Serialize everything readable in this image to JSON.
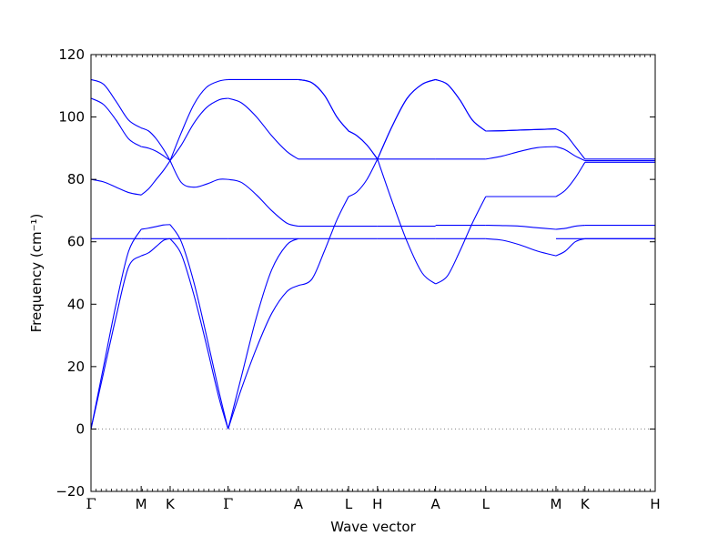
{
  "chart_data": {
    "type": "line",
    "title": "",
    "xlabel": "Wave vector",
    "ylabel": "Frequency (cm⁻¹)",
    "ylim": [
      -20,
      120
    ],
    "y_ticks": [
      -20,
      0,
      20,
      40,
      60,
      80,
      100,
      120
    ],
    "x_ticks": [
      {
        "label": "Γ",
        "x": 0.0
      },
      {
        "label": "M",
        "x": 1.0
      },
      {
        "label": "K",
        "x": 1.577
      },
      {
        "label": "Γ",
        "x": 2.732
      },
      {
        "label": "A",
        "x": 4.132
      },
      {
        "label": "L",
        "x": 5.132
      },
      {
        "label": "H",
        "x": 5.709
      },
      {
        "label": "A",
        "x": 6.866
      },
      {
        "label": "L",
        "x": 7.866
      },
      {
        "label": "M",
        "x": 9.266
      },
      {
        "label": "K",
        "x": 9.843
      },
      {
        "label": "H",
        "x": 11.243
      }
    ],
    "xlim": [
      0,
      11.243
    ],
    "zero_line": {
      "y": 0,
      "style": "dotted",
      "color": "#808080"
    },
    "line_color": "#0000ff",
    "grid": false,
    "legend": "none",
    "segments": [
      {
        "x": [
          0,
          0.25,
          0.5,
          0.75,
          1.0
        ],
        "series": [
          [
            0,
            18,
            36,
            52,
            55.5
          ],
          [
            0,
            20,
            40,
            57,
            64
          ],
          [
            61,
            61,
            61,
            61,
            61
          ],
          [
            80,
            79.2,
            77.5,
            75.8,
            75
          ],
          [
            106,
            104,
            99,
            93,
            90.5
          ],
          [
            112,
            110.5,
            105,
            99,
            96.5
          ]
        ]
      },
      {
        "x": [
          1.0,
          1.15,
          1.3,
          1.45,
          1.577
        ],
        "series": [
          [
            55.5,
            56.5,
            58.5,
            60.5,
            61
          ],
          [
            64,
            64.4,
            64.9,
            65.4,
            65.5
          ],
          [
            61,
            61,
            61,
            61,
            61
          ],
          [
            75,
            77,
            80,
            83,
            86
          ],
          [
            90.5,
            90,
            89,
            87.5,
            86
          ],
          [
            96.5,
            95.5,
            93,
            89.5,
            86
          ]
        ]
      },
      {
        "x": [
          1.577,
          1.8,
          2.05,
          2.3,
          2.55,
          2.732
        ],
        "series": [
          [
            61,
            56,
            43,
            27,
            10,
            0
          ],
          [
            65.5,
            60,
            47,
            30,
            12,
            0
          ],
          [
            61,
            61,
            61,
            61,
            61,
            61
          ],
          [
            86,
            79,
            77.5,
            78.5,
            80,
            80
          ],
          [
            86,
            91,
            98,
            103,
            105.5,
            106
          ],
          [
            86,
            95,
            104,
            109.5,
            111.5,
            112
          ]
        ]
      },
      {
        "x": [
          2.732,
          3.0,
          3.3,
          3.6,
          3.9,
          4.132
        ],
        "series": [
          [
            0,
            13,
            26,
            37,
            44,
            46
          ],
          [
            0,
            17,
            36,
            51,
            59,
            61
          ],
          [
            61,
            61,
            61,
            61,
            61,
            61
          ],
          [
            80,
            79,
            75,
            70,
            66,
            65
          ],
          [
            106,
            104.5,
            100,
            94,
            89,
            86.5
          ],
          [
            112,
            112,
            112,
            112,
            112,
            112
          ]
        ]
      },
      {
        "x": [
          4.132,
          4.4,
          4.65,
          4.9,
          5.132
        ],
        "series": [
          [
            46,
            48,
            57,
            67,
            74.5
          ],
          [
            61,
            61,
            61,
            61,
            61
          ],
          [
            65,
            65,
            65,
            65,
            65
          ],
          [
            86.5,
            86.5,
            86.5,
            86.5,
            86.5
          ],
          [
            112,
            111,
            107,
            100,
            95.5
          ],
          [
            112,
            111,
            107,
            100,
            95.5
          ]
        ]
      },
      {
        "x": [
          5.132,
          5.3,
          5.5,
          5.709
        ],
        "series": [
          [
            74.5,
            76,
            80,
            86.5
          ],
          [
            61,
            61,
            61,
            61
          ],
          [
            65,
            65,
            65,
            65
          ],
          [
            86.5,
            86.5,
            86.5,
            86.5
          ],
          [
            95.5,
            94,
            91,
            86.5
          ],
          [
            95.5,
            94,
            91,
            86.5
          ]
        ]
      },
      {
        "x": [
          5.709,
          6.0,
          6.3,
          6.6,
          6.866
        ],
        "series": [
          [
            86.5,
            73,
            60,
            50,
            46.5
          ],
          [
            61,
            61,
            61,
            61,
            61
          ],
          [
            65,
            65,
            65,
            65,
            65
          ],
          [
            86.5,
            86.5,
            86.5,
            86.5,
            86.5
          ],
          [
            86.5,
            97,
            106,
            110.5,
            112
          ],
          [
            86.5,
            97,
            106,
            110.5,
            112
          ]
        ]
      },
      {
        "x": [
          6.866,
          7.1,
          7.35,
          7.6,
          7.866
        ],
        "series": [
          [
            46.5,
            49,
            57,
            66,
            74.5
          ],
          [
            61,
            61,
            61,
            61,
            61
          ],
          [
            65.3,
            65.3,
            65.3,
            65.3,
            65.3
          ],
          [
            86.5,
            86.5,
            86.5,
            86.5,
            86.5
          ],
          [
            112,
            110.5,
            105.5,
            99,
            95.5
          ],
          [
            112,
            110.5,
            105.5,
            99,
            95.5
          ]
        ]
      },
      {
        "x": [
          7.866,
          8.2,
          8.55,
          8.9,
          9.266
        ],
        "series": [
          [
            74.5,
            74.5,
            74.5,
            74.5,
            74.5
          ],
          [
            61,
            60.5,
            59,
            57,
            55.5
          ],
          [
            65.3,
            65.2,
            65,
            64.5,
            64
          ],
          [
            86.5,
            87.5,
            89,
            90.2,
            90.5
          ],
          [
            95.5,
            95.6,
            95.8,
            96,
            96.2
          ],
          [
            95.5,
            95.6,
            95.8,
            96,
            96.2
          ]
        ]
      },
      {
        "x": [
          9.266,
          9.45,
          9.65,
          9.843
        ],
        "series": [
          [
            55.5,
            57,
            60,
            61
          ],
          [
            64,
            64.3,
            65,
            65.3
          ],
          [
            74.5,
            76.5,
            80.5,
            85.5
          ],
          [
            90.5,
            89.5,
            87.5,
            86
          ],
          [
            96.2,
            94.5,
            90.5,
            86.5
          ],
          [
            61,
            61,
            61,
            61
          ]
        ]
      },
      {
        "x": [
          9.843,
          10.5,
          11.243
        ],
        "series": [
          [
            61,
            61,
            61
          ],
          [
            65.3,
            65.3,
            65.3
          ],
          [
            85.5,
            85.5,
            85.5
          ],
          [
            86,
            86,
            86
          ],
          [
            86.5,
            86.5,
            86.5
          ],
          [
            61,
            61,
            61
          ]
        ]
      }
    ]
  }
}
